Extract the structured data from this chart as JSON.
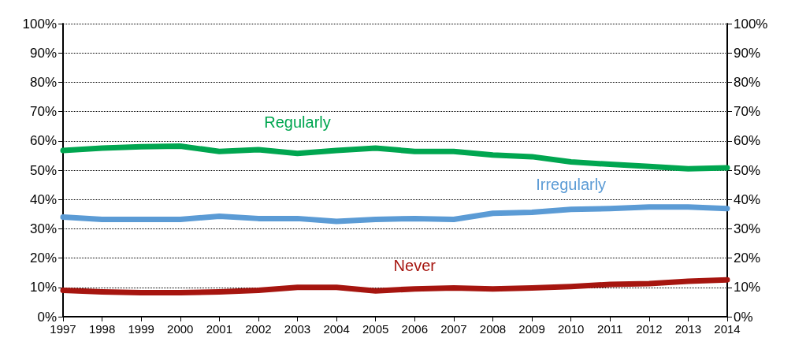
{
  "chart_data": {
    "type": "line",
    "categories": [
      "1997",
      "1998",
      "1999",
      "2000",
      "2001",
      "2002",
      "2003",
      "2004",
      "2005",
      "2006",
      "2007",
      "2008",
      "2009",
      "2010",
      "2011",
      "2012",
      "2013",
      "2014"
    ],
    "series": [
      {
        "name": "Regularly",
        "color": "#00a650",
        "values": [
          56.7,
          57.5,
          58,
          58.2,
          56.4,
          57,
          55.7,
          56.7,
          57.5,
          56.4,
          56.4,
          55.2,
          54.6,
          52.8,
          52,
          51.3,
          50.5,
          50.8
        ]
      },
      {
        "name": "Irregularly",
        "color": "#5b9bd5",
        "values": [
          34,
          33.2,
          33.2,
          33.2,
          34.3,
          33.5,
          33.5,
          32.5,
          33.2,
          33.5,
          33.2,
          35.3,
          35.6,
          36.6,
          36.9,
          37.4,
          37.4,
          36.9
        ]
      },
      {
        "name": "Never",
        "color": "#a6150f",
        "values": [
          9,
          8.5,
          8.2,
          8.2,
          8.5,
          9,
          10,
          10,
          8.8,
          9.5,
          9.8,
          9.5,
          9.8,
          10.3,
          11,
          11.3,
          12.1,
          12.6
        ]
      }
    ],
    "ylim": [
      0,
      100
    ],
    "yticks": [
      {
        "value": 0,
        "label": "0%"
      },
      {
        "value": 10,
        "label": "10%"
      },
      {
        "value": 20,
        "label": "20%"
      },
      {
        "value": 30,
        "label": "30%"
      },
      {
        "value": 40,
        "label": "40%"
      },
      {
        "value": 50,
        "label": "50%"
      },
      {
        "value": 60,
        "label": "60%"
      },
      {
        "value": 70,
        "label": "70%"
      },
      {
        "value": 80,
        "label": "80%"
      },
      {
        "value": 90,
        "label": "90%"
      },
      {
        "value": 100,
        "label": "100%"
      }
    ],
    "y2lim": [
      0,
      100
    ],
    "y2ticks": [
      {
        "value": 0,
        "label": "0%"
      },
      {
        "value": 10,
        "label": "10%"
      },
      {
        "value": 20,
        "label": "20%"
      },
      {
        "value": 30,
        "label": "30%"
      },
      {
        "value": 40,
        "label": "40%"
      },
      {
        "value": 50,
        "label": "50%"
      },
      {
        "value": 60,
        "label": "60%"
      },
      {
        "value": 70,
        "label": "70%"
      },
      {
        "value": 80,
        "label": "80%"
      },
      {
        "value": 90,
        "label": "90%"
      },
      {
        "value": 100,
        "label": "100%"
      }
    ],
    "grid": "y",
    "legend": false,
    "marker": "none",
    "line_style": "solid"
  }
}
